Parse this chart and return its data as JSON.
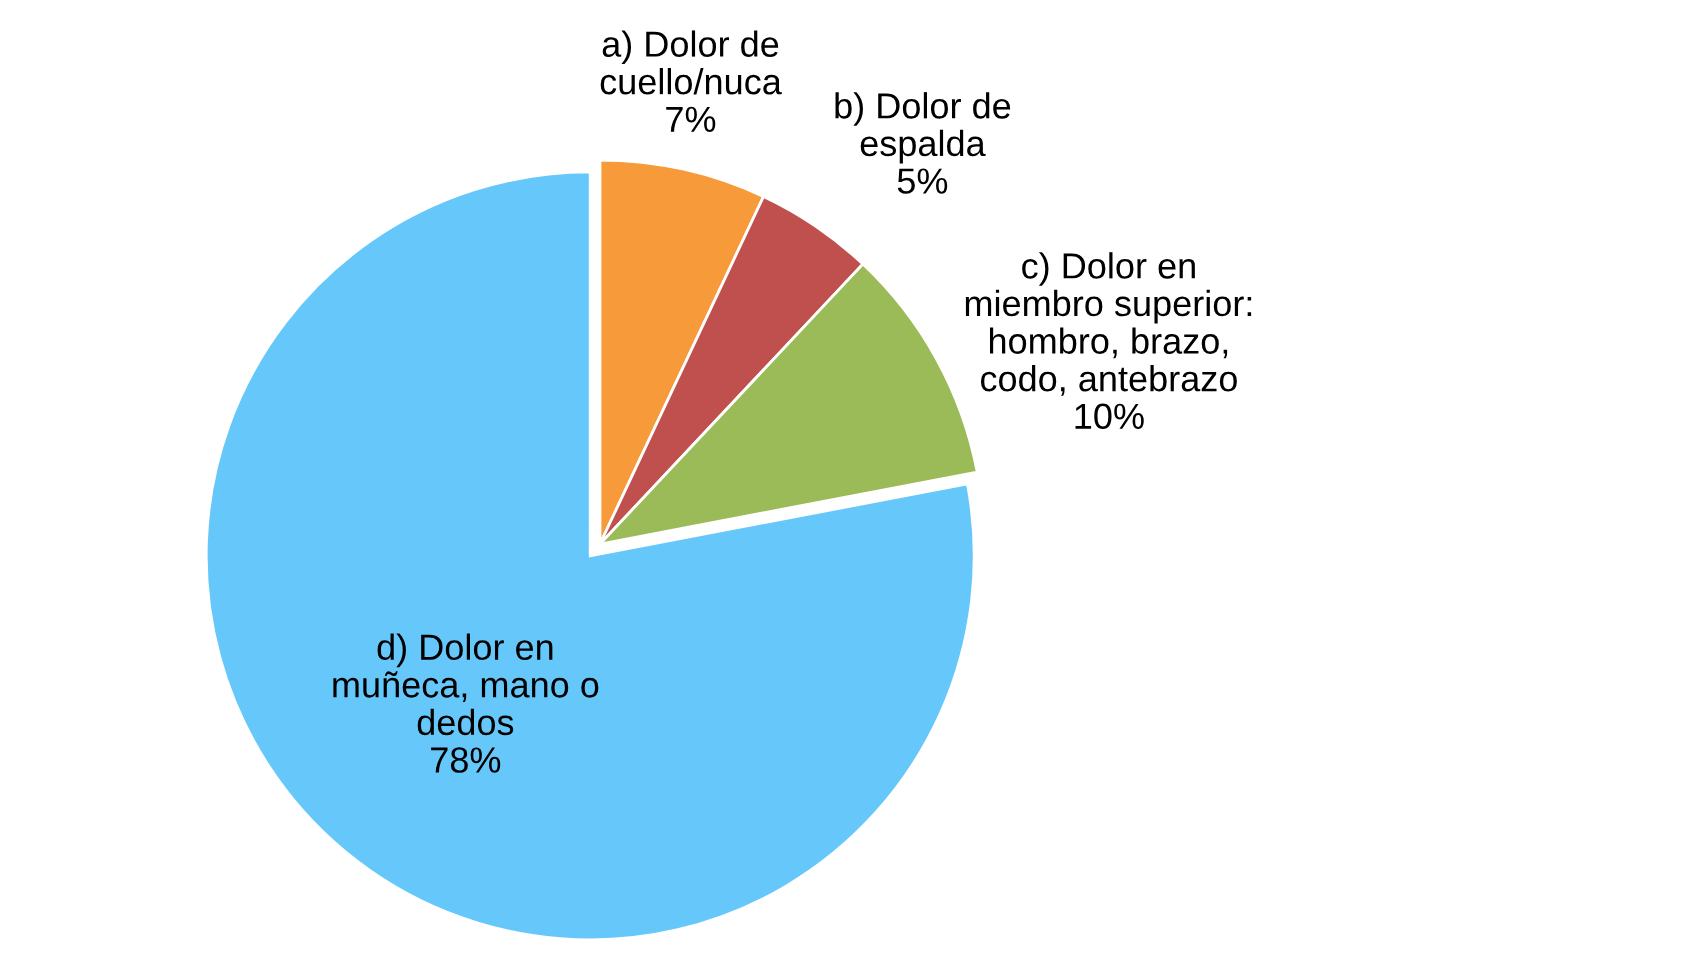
{
  "chart_data": {
    "type": "pie",
    "categories": [
      "a) Dolor de\ncuello/nuca",
      "b) Dolor de\nespalda",
      "c) Dolor en\nmiembro superior:\nhombro, brazo,\ncodo, antebrazo",
      "d) Dolor en\nmuñeca, mano o\ndedos"
    ],
    "values": [
      7,
      5,
      10,
      78
    ],
    "value_labels": [
      "7%",
      "5%",
      "10%",
      "78%"
    ],
    "colors": [
      "#f79a3a",
      "#c0504d",
      "#9bbb59",
      "#66c8fa"
    ]
  }
}
